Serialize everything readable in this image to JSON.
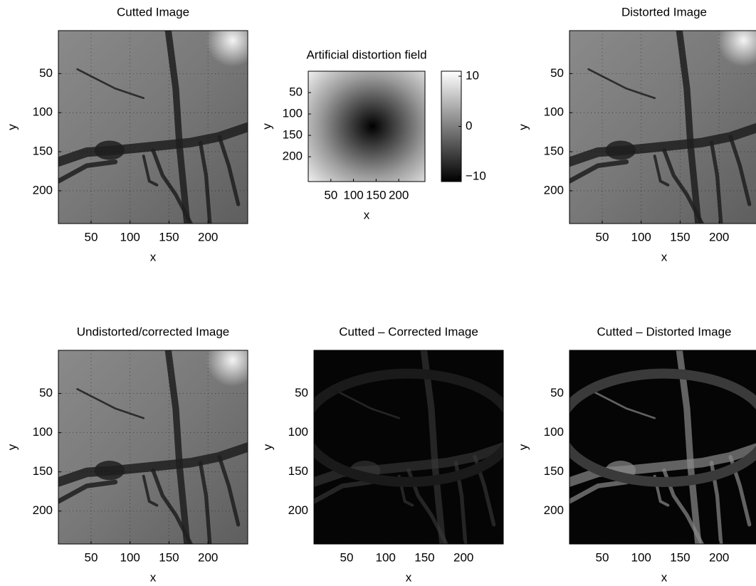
{
  "chart_data": [
    {
      "type": "image",
      "title": "Cutted Image",
      "x_label": "x",
      "y_label": "y",
      "xlim": [
        8,
        251
      ],
      "ylim": [
        -5,
        242
      ],
      "xticks": [
        50,
        100,
        150,
        200
      ],
      "yticks": [
        50,
        100,
        150,
        200
      ],
      "grid": true
    },
    {
      "type": "image",
      "title": "Artificial distortion field",
      "x_label": "x",
      "y_label": "y",
      "xlim": [
        0,
        258
      ],
      "ylim": [
        0,
        258
      ],
      "xticks": [
        50,
        100,
        150,
        200
      ],
      "yticks": [
        50,
        100,
        150,
        200
      ],
      "grid": false,
      "colorbar": {
        "lim": [
          -11,
          11
        ],
        "ticks": [
          {
            "value": -10,
            "label": "−10"
          },
          0,
          10
        ]
      }
    },
    {
      "type": "image",
      "title": "Distorted Image",
      "x_label": "x",
      "y_label": "y",
      "xlim": [
        8,
        251
      ],
      "ylim": [
        -5,
        242
      ],
      "xticks": [
        50,
        100,
        150,
        200
      ],
      "yticks": [
        50,
        100,
        150,
        200
      ],
      "grid": true
    },
    {
      "type": "image",
      "title": "Undistorted/corrected Image",
      "x_label": "x",
      "y_label": "y",
      "xlim": [
        8,
        251
      ],
      "ylim": [
        -5,
        242
      ],
      "xticks": [
        50,
        100,
        150,
        200
      ],
      "yticks": [
        50,
        100,
        150,
        200
      ],
      "grid": true
    },
    {
      "type": "image",
      "title": "Cutted – Corrected Image",
      "x_label": "x",
      "y_label": "y",
      "xlim": [
        8,
        251
      ],
      "ylim": [
        -5,
        242
      ],
      "xticks": [
        50,
        100,
        150,
        200
      ],
      "yticks": [
        50,
        100,
        150,
        200
      ],
      "grid": false
    },
    {
      "type": "image",
      "title": "Cutted – Distorted Image",
      "x_label": "x",
      "y_label": "y",
      "xlim": [
        8,
        251
      ],
      "ylim": [
        -5,
        242
      ],
      "xticks": [
        50,
        100,
        150,
        200
      ],
      "yticks": [
        50,
        100,
        150,
        200
      ],
      "grid": false
    }
  ]
}
